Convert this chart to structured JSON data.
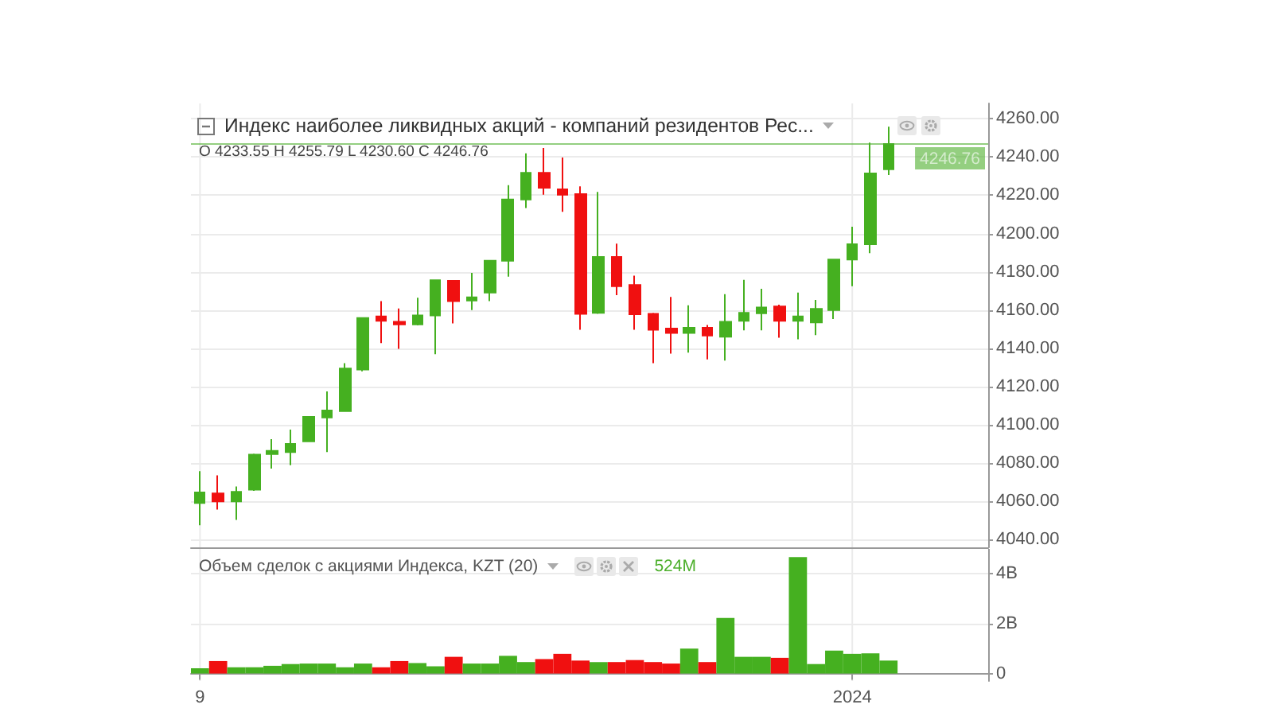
{
  "chart_data": [
    {
      "type": "candlestick",
      "title": "Индекс наиболее ликвидных акций - компаний резидентов Рес...",
      "subtitle": "O 4233.55 H 4255.79 L 4230.60 C 4246.76",
      "categories": [
        "9",
        null,
        null,
        null,
        null,
        null,
        null,
        null,
        null,
        null,
        null,
        null,
        null,
        null,
        null,
        null,
        null,
        null,
        null,
        null,
        null,
        null,
        null,
        null,
        null,
        null,
        null,
        null,
        null,
        null,
        null,
        null,
        null,
        null,
        null,
        null,
        "2024",
        null,
        null,
        null,
        null,
        null,
        null,
        null
      ],
      "ohlc": [
        [
          4059.2,
          4075.8,
          4047.5,
          4064.7
        ],
        [
          4064.2,
          4073.6,
          4055.8,
          4060.0
        ],
        [
          4060.0,
          4067.8,
          4050.3,
          4065.0
        ],
        [
          4066.1,
          4085.0,
          4065.5,
          4084.4
        ],
        [
          4084.7,
          4092.5,
          4077.2,
          4086.4
        ],
        [
          4085.8,
          4097.5,
          4078.9,
          4090.0
        ],
        [
          4091.4,
          4104.6,
          4091.0,
          4104.2
        ],
        [
          4103.9,
          4117.5,
          4085.8,
          4107.5
        ],
        [
          4107.2,
          4132.2,
          4107.0,
          4129.4
        ],
        [
          4128.9,
          4156.2,
          4128.0,
          4155.8
        ],
        [
          4156.7,
          4164.7,
          4142.8,
          4154.4
        ],
        [
          4153.9,
          4160.8,
          4139.7,
          4152.5
        ],
        [
          4152.5,
          4166.4,
          4152.0,
          4157.2
        ],
        [
          4157.2,
          4176.0,
          4136.9,
          4175.6
        ],
        [
          4175.3,
          4175.6,
          4153.0,
          4164.7
        ],
        [
          4165.0,
          4179.4,
          4160.0,
          4166.7
        ],
        [
          4169.2,
          4186.1,
          4164.7,
          4185.8
        ],
        [
          4185.8,
          4225.3,
          4177.5,
          4217.8
        ],
        [
          4217.8,
          4241.9,
          4213.3,
          4231.7
        ],
        [
          4231.7,
          4244.7,
          4220.3,
          4223.9
        ],
        [
          4223.1,
          4239.7,
          4211.4,
          4220.3
        ],
        [
          4220.6,
          4224.7,
          4149.7,
          4158.0
        ],
        [
          4158.6,
          4221.7,
          4158.0,
          4187.8
        ],
        [
          4187.8,
          4194.7,
          4167.8,
          4172.5
        ],
        [
          4173.1,
          4178.0,
          4149.7,
          4157.8
        ],
        [
          4158.0,
          4158.5,
          4132.2,
          4149.7
        ],
        [
          4150.3,
          4166.9,
          4137.2,
          4148.1
        ],
        [
          4148.1,
          4162.5,
          4137.8,
          4150.8
        ],
        [
          4150.8,
          4152.2,
          4134.2,
          4146.7
        ],
        [
          4146.1,
          4168.3,
          4133.6,
          4153.9
        ],
        [
          4154.4,
          4175.8,
          4149.4,
          4158.6
        ],
        [
          4158.3,
          4171.1,
          4149.4,
          4161.4
        ],
        [
          4161.9,
          4162.8,
          4145.6,
          4154.4
        ],
        [
          4154.4,
          4169.2,
          4144.7,
          4156.7
        ],
        [
          4153.6,
          4165.3,
          4146.9,
          4160.6
        ],
        [
          4160.0,
          4186.5,
          4155.3,
          4186.4
        ],
        [
          4186.4,
          4203.6,
          4172.5,
          4194.4
        ],
        [
          4194.4,
          4247.5,
          4189.7,
          4231.4
        ],
        [
          4233.55,
          4255.79,
          4230.6,
          4246.76
        ],
        null,
        null,
        null,
        null,
        null
      ],
      "colors": [
        "#45b020",
        "#f01010",
        "#45b020",
        "#45b020",
        "#45b020",
        "#45b020",
        "#45b020",
        "#45b020",
        "#45b020",
        "#45b020",
        "#f01010",
        "#f01010",
        "#45b020",
        "#45b020",
        "#f01010",
        "#45b020",
        "#45b020",
        "#45b020",
        "#45b020",
        "#f01010",
        "#f01010",
        "#f01010",
        "#45b020",
        "#f01010",
        "#f01010",
        "#f01010",
        "#f01010",
        "#45b020",
        "#f01010",
        "#45b020",
        "#45b020",
        "#45b020",
        "#f01010",
        "#45b020",
        "#45b020",
        "#45b020",
        "#45b020",
        "#45b020",
        "#45b020",
        null,
        null,
        null,
        null,
        null
      ],
      "ylim": [
        4036,
        4268
      ],
      "yticks": [
        {
          "value": 4040,
          "label": "4040.00"
        },
        {
          "value": 4060,
          "label": "4060.00"
        },
        {
          "value": 4080,
          "label": "4080.00"
        },
        {
          "value": 4100,
          "label": "4100.00"
        },
        {
          "value": 4120,
          "label": "4120.00"
        },
        {
          "value": 4140,
          "label": "4140.00"
        },
        {
          "value": 4160,
          "label": "4160.00"
        },
        {
          "value": 4180,
          "label": "4180.00"
        },
        {
          "value": 4200,
          "label": "4200.00"
        },
        {
          "value": 4220,
          "label": "4220.00"
        },
        {
          "value": 4240,
          "label": "4240.00"
        },
        {
          "value": 4260,
          "label": "4260.00"
        }
      ],
      "ref_lines": [
        {
          "axis": "y",
          "value": 4246.76,
          "label": "4246.76",
          "color": "#4caf2b"
        }
      ],
      "grid": true,
      "tick_labels": "y"
    },
    {
      "type": "bar",
      "title": "Объем сделок с акциями Индекса, KZT (20)",
      "annotations": [
        "524M"
      ],
      "categories": [
        "9",
        null,
        null,
        null,
        null,
        null,
        null,
        null,
        null,
        null,
        null,
        null,
        null,
        null,
        null,
        null,
        null,
        null,
        null,
        null,
        null,
        null,
        null,
        null,
        null,
        null,
        null,
        null,
        null,
        null,
        null,
        null,
        null,
        null,
        null,
        null,
        "2024",
        null,
        null,
        null,
        null,
        null,
        null,
        null
      ],
      "values": [
        0.21,
        0.5,
        0.25,
        0.25,
        0.31,
        0.38,
        0.4,
        0.4,
        0.25,
        0.4,
        0.25,
        0.5,
        0.42,
        0.29,
        0.67,
        0.4,
        0.4,
        0.71,
        0.46,
        0.58,
        0.79,
        0.52,
        0.46,
        0.46,
        0.54,
        0.46,
        0.4,
        1.0,
        0.46,
        2.23,
        0.67,
        0.67,
        0.63,
        4.67,
        0.38,
        0.92,
        0.79,
        0.81,
        0.52,
        null,
        null,
        null,
        null,
        null
      ],
      "colors": [
        "#45b020",
        "#f01010",
        "#45b020",
        "#45b020",
        "#45b020",
        "#45b020",
        "#45b020",
        "#45b020",
        "#45b020",
        "#45b020",
        "#f01010",
        "#f01010",
        "#45b020",
        "#45b020",
        "#f01010",
        "#45b020",
        "#45b020",
        "#45b020",
        "#45b020",
        "#f01010",
        "#f01010",
        "#f01010",
        "#45b020",
        "#f01010",
        "#f01010",
        "#f01010",
        "#f01010",
        "#45b020",
        "#f01010",
        "#45b020",
        "#45b020",
        "#45b020",
        "#f01010",
        "#45b020",
        "#45b020",
        "#45b020",
        "#45b020",
        "#45b020",
        "#45b020",
        null,
        null,
        null,
        null,
        null
      ],
      "ylim": [
        -0.3,
        5
      ],
      "yticks": [
        0,
        {
          "value": 2,
          "label": "2B"
        },
        {
          "value": 4,
          "label": "4B"
        }
      ],
      "grid": true
    }
  ]
}
